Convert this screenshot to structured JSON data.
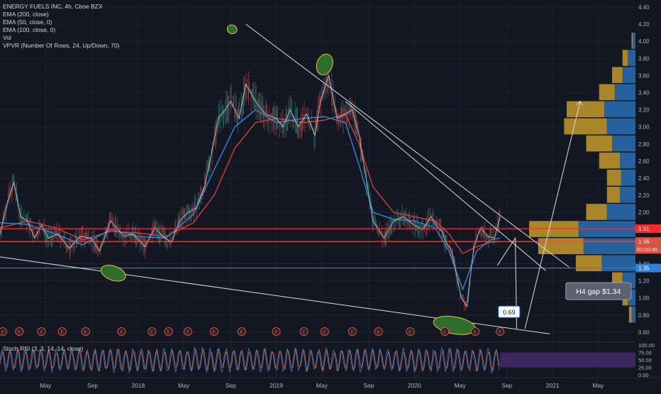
{
  "legend": {
    "symbol": "ENERGY FUELS INC, 4h, Cboe BZX",
    "ema200": "EMA (200, close)",
    "ema50": "EMA (50, close, 0)",
    "ema100": "EMA (100, close, 0)",
    "vol": "Vol",
    "vpvr": "VPVR (Number Of Rows, 24, Up/Down, 70)"
  },
  "stoch_label": "Stoch RSI (3, 3, 14, 14, close)",
  "earnings_marker": "E",
  "colors": {
    "background": "#131722",
    "grid": "#1e2230",
    "axis_text": "#b2b5be",
    "ema_red": "#e2413d",
    "ema_blue": "#2e8fe3",
    "price_line_red": "#ff2b2b",
    "price_line_blue": "#2f80d9",
    "ellipse_fill": "#2f6e2a",
    "ellipse_stroke": "#e0c83a",
    "vpvr_up_blue": "#2a6fb5",
    "vpvr_down_gold": "#c79a2a",
    "stoch_fill": "#4a2a6e",
    "stoch_k": "#3d8ee6",
    "stoch_d": "#e06a5a"
  },
  "chart_data": {
    "type": "line",
    "title": "ENERGY FUELS INC, 4h, Cboe BZX",
    "xlabel": "",
    "ylabel": "",
    "x_ticks": [
      "May",
      "Sep",
      "2018",
      "May",
      "Sep",
      "2019",
      "May",
      "Sep",
      "2020",
      "May",
      "Sep",
      "2021",
      "May"
    ],
    "x_tick_positions": [
      2017.33,
      2017.67,
      2018.0,
      2018.33,
      2018.67,
      2019.0,
      2019.33,
      2019.67,
      2020.0,
      2020.33,
      2020.67,
      2021.0,
      2021.33
    ],
    "xlim": [
      2017.0,
      2021.6
    ],
    "ylim": [
      0.5,
      4.45
    ],
    "y_ticks": [
      0.6,
      0.8,
      1.0,
      1.2,
      1.4,
      1.6,
      1.8,
      2.0,
      2.2,
      2.4,
      2.6,
      2.8,
      3.0,
      3.2,
      3.4,
      3.6,
      3.8,
      4.0,
      4.2,
      4.4
    ],
    "price": {
      "x": [
        2017.0,
        2017.05,
        2017.1,
        2017.15,
        2017.2,
        2017.25,
        2017.3,
        2017.35,
        2017.42,
        2017.5,
        2017.58,
        2017.66,
        2017.72,
        2017.8,
        2017.9,
        2017.96,
        2018.05,
        2018.12,
        2018.18,
        2018.24,
        2018.3,
        2018.36,
        2018.42,
        2018.48,
        2018.52,
        2018.58,
        2018.63,
        2018.67,
        2018.73,
        2018.78,
        2018.85,
        2018.92,
        2019.0,
        2019.05,
        2019.1,
        2019.16,
        2019.22,
        2019.28,
        2019.32,
        2019.38,
        2019.44,
        2019.5,
        2019.55,
        2019.6,
        2019.65,
        2019.7,
        2019.78,
        2019.85,
        2019.92,
        2020.0,
        2020.06,
        2020.12,
        2020.17,
        2020.2,
        2020.23,
        2020.27,
        2020.3,
        2020.34,
        2020.38,
        2020.43,
        2020.48,
        2020.53,
        2020.58,
        2020.62
      ],
      "y": [
        1.75,
        2.1,
        2.35,
        1.95,
        1.9,
        1.7,
        1.85,
        1.7,
        1.75,
        1.58,
        1.72,
        1.7,
        1.55,
        1.9,
        1.72,
        1.75,
        1.6,
        1.82,
        1.72,
        1.65,
        1.9,
        2.0,
        2.05,
        2.3,
        2.6,
        3.1,
        3.2,
        3.3,
        3.1,
        3.5,
        3.3,
        3.15,
        3.1,
        3.0,
        3.2,
        3.0,
        3.15,
        2.9,
        3.3,
        3.6,
        3.1,
        3.15,
        3.2,
        2.9,
        2.4,
        1.9,
        1.7,
        1.9,
        1.95,
        1.85,
        1.8,
        1.95,
        1.82,
        1.78,
        1.65,
        1.55,
        1.3,
        1.0,
        0.9,
        1.6,
        1.82,
        1.72,
        1.7,
        1.95
      ]
    },
    "ema_red": {
      "x": [
        2017.0,
        2017.2,
        2017.4,
        2017.6,
        2017.8,
        2018.0,
        2018.2,
        2018.4,
        2018.55,
        2018.7,
        2018.85,
        2019.0,
        2019.2,
        2019.35,
        2019.5,
        2019.6,
        2019.7,
        2019.85,
        2020.0,
        2020.15,
        2020.25,
        2020.35,
        2020.45,
        2020.55,
        2020.62
      ],
      "y": [
        1.82,
        1.9,
        1.82,
        1.68,
        1.78,
        1.76,
        1.72,
        1.88,
        2.2,
        2.75,
        3.05,
        3.1,
        3.05,
        3.08,
        3.15,
        2.8,
        2.3,
        2.0,
        1.95,
        1.9,
        1.75,
        1.52,
        1.6,
        1.65,
        1.66
      ]
    },
    "ema_blue": {
      "x": [
        2017.0,
        2017.2,
        2017.4,
        2017.6,
        2017.8,
        2018.0,
        2018.2,
        2018.4,
        2018.55,
        2018.7,
        2018.85,
        2019.0,
        2019.2,
        2019.35,
        2019.5,
        2019.6,
        2019.7,
        2019.85,
        2020.0,
        2020.15,
        2020.25,
        2020.35,
        2020.45,
        2020.55,
        2020.62
      ],
      "y": [
        1.88,
        1.86,
        1.75,
        1.62,
        1.8,
        1.72,
        1.7,
        1.98,
        2.5,
        3.0,
        3.2,
        3.05,
        3.1,
        3.12,
        3.05,
        2.55,
        2.0,
        1.92,
        1.9,
        1.82,
        1.55,
        1.1,
        1.55,
        1.68,
        1.7
      ]
    },
    "horizontal_lines": [
      {
        "value": 1.81,
        "label": "1.81",
        "color": "#ff2b2b"
      },
      {
        "value": 1.66,
        "label": "1.66",
        "color": "#e0523f"
      },
      {
        "value": 1.35,
        "label": "1.35",
        "color": "#2f80d9"
      }
    ],
    "countdown_label": "02:00:45",
    "trendlines": [
      {
        "from": [
          2018.78,
          4.2
        ],
        "to": [
          2021.12,
          1.36
        ]
      },
      {
        "from": [
          2019.5,
          3.3
        ],
        "to": [
          2020.95,
          1.32
        ]
      },
      {
        "from": [
          2017.0,
          1.48
        ],
        "to": [
          2020.98,
          0.58
        ]
      }
    ],
    "projection_path": [
      [
        2020.6,
        1.38
      ],
      [
        2020.73,
        1.7
      ],
      [
        2020.74,
        0.64
      ]
    ],
    "up_arrow_path": [
      [
        2020.8,
        0.64
      ],
      [
        2021.2,
        3.3
      ]
    ],
    "annotations": [
      {
        "text": "0.69",
        "x": 2020.68,
        "y": 0.83
      },
      {
        "text": "H4 gap $1.34",
        "x": 2021.26,
        "y": 1.08
      }
    ],
    "ellipses": [
      {
        "x": 2018.68,
        "y": 4.14
      },
      {
        "x": 2019.35,
        "y": 3.73
      },
      {
        "x": 2017.82,
        "y": 1.29
      },
      {
        "x": 2020.29,
        "y": 0.68
      }
    ],
    "earnings_dates": [
      2017.02,
      2017.14,
      2017.3,
      2017.45,
      2017.62,
      2017.88,
      2018.1,
      2018.22,
      2018.36,
      2018.55,
      2018.75,
      2019.0,
      2019.2,
      2019.35,
      2019.55,
      2019.74,
      2019.97,
      2020.22,
      2020.44,
      2020.62
    ],
    "vpvr_rows": [
      {
        "price": 4.0,
        "up": 2,
        "down": 1
      },
      {
        "price": 3.8,
        "up": 6,
        "down": 4
      },
      {
        "price": 3.6,
        "up": 10,
        "down": 8
      },
      {
        "price": 3.4,
        "up": 16,
        "down": 12
      },
      {
        "price": 3.2,
        "up": 24,
        "down": 29
      },
      {
        "price": 3.0,
        "up": 22,
        "down": 33
      },
      {
        "price": 2.8,
        "up": 18,
        "down": 20
      },
      {
        "price": 2.6,
        "up": 12,
        "down": 16
      },
      {
        "price": 2.4,
        "up": 11,
        "down": 11
      },
      {
        "price": 2.2,
        "up": 12,
        "down": 10
      },
      {
        "price": 2.0,
        "up": 22,
        "down": 16
      },
      {
        "price": 1.8,
        "up": 44,
        "down": 38
      },
      {
        "price": 1.6,
        "up": 40,
        "down": 35
      },
      {
        "price": 1.4,
        "up": 26,
        "down": 20
      },
      {
        "price": 1.2,
        "up": 10,
        "down": 8
      },
      {
        "price": 1.0,
        "up": 6,
        "down": 4
      },
      {
        "price": 0.8,
        "up": 3,
        "down": 2
      }
    ],
    "stoch": {
      "ylim": [
        -5,
        105
      ],
      "y_ticks": [
        0.0,
        25.0,
        50.0,
        75.0,
        100.0
      ],
      "band": [
        25.0,
        75.0
      ]
    }
  }
}
